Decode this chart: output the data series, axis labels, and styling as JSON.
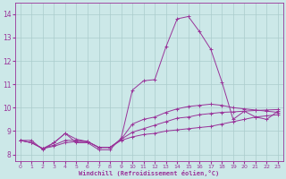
{
  "xlabel": "Windchill (Refroidissement éolien,°C)",
  "background_color": "#cce8e8",
  "grid_color": "#aacccc",
  "line_color": "#993399",
  "xlim": [
    -0.5,
    23.5
  ],
  "ylim": [
    7.7,
    14.5
  ],
  "xticks": [
    0,
    1,
    2,
    3,
    4,
    5,
    6,
    7,
    8,
    9,
    10,
    11,
    12,
    13,
    14,
    15,
    16,
    17,
    18,
    19,
    20,
    21,
    22,
    23
  ],
  "yticks": [
    8,
    9,
    10,
    11,
    12,
    13,
    14
  ],
  "series": [
    [
      8.6,
      8.6,
      8.2,
      8.5,
      8.9,
      8.5,
      8.5,
      8.2,
      8.2,
      8.7,
      10.75,
      11.15,
      11.2,
      12.6,
      13.8,
      13.9,
      13.25,
      12.5,
      11.1,
      9.5,
      9.85,
      9.6,
      9.5,
      9.85
    ],
    [
      8.6,
      8.5,
      8.25,
      8.5,
      8.9,
      8.65,
      8.55,
      8.3,
      8.3,
      8.65,
      9.3,
      9.5,
      9.6,
      9.8,
      9.95,
      10.05,
      10.1,
      10.15,
      10.1,
      10.0,
      9.95,
      9.9,
      9.85,
      9.8
    ],
    [
      8.6,
      8.5,
      8.25,
      8.4,
      8.6,
      8.6,
      8.55,
      8.3,
      8.3,
      8.65,
      8.95,
      9.1,
      9.25,
      9.4,
      9.55,
      9.6,
      9.7,
      9.75,
      9.8,
      9.82,
      9.85,
      9.88,
      9.9,
      9.92
    ],
    [
      8.6,
      8.5,
      8.25,
      8.35,
      8.5,
      8.55,
      8.55,
      8.3,
      8.3,
      8.6,
      8.75,
      8.85,
      8.9,
      9.0,
      9.05,
      9.1,
      9.15,
      9.2,
      9.3,
      9.4,
      9.5,
      9.6,
      9.65,
      9.7
    ]
  ]
}
